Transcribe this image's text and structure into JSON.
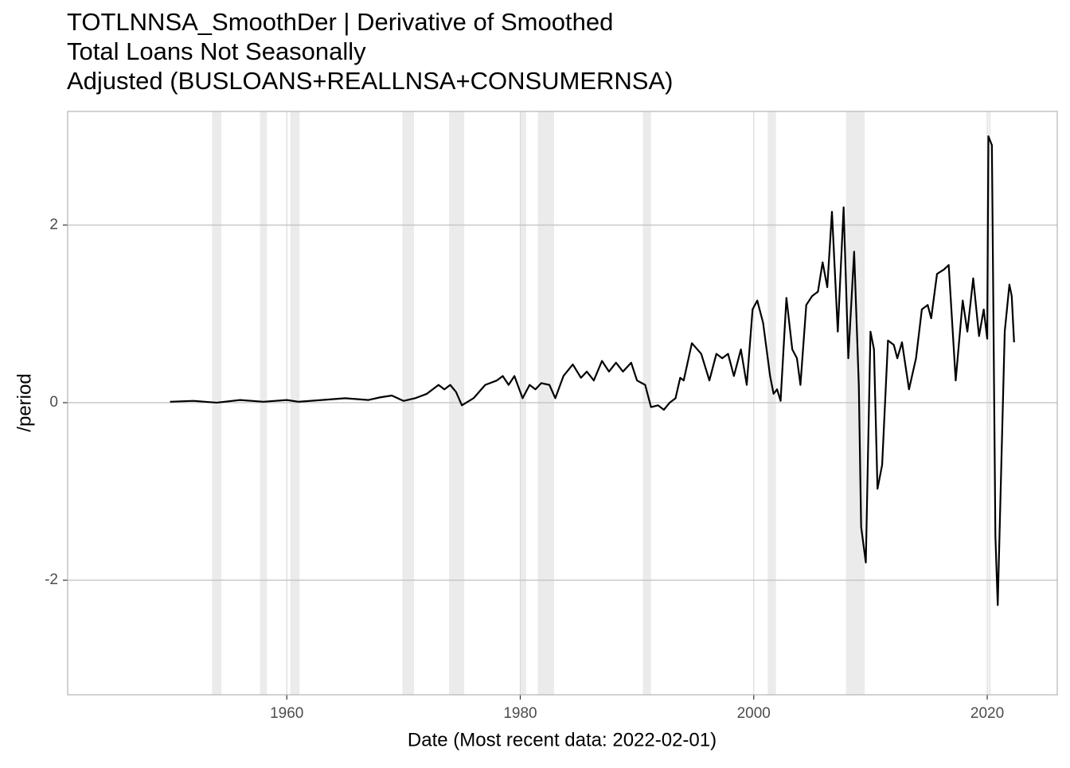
{
  "chart_data": {
    "type": "line",
    "title": [
      "TOTLNNSA_SmoothDer | Derivative of Smoothed",
      "Total Loans Not Seasonally",
      "Adjusted (BUSLOANS+REALLNSA+CONSUMERNSA)"
    ],
    "xlabel": "Date (Most recent data: 2022-02-01)",
    "ylabel": "/period",
    "xlim": [
      1941.23,
      2026.0
    ],
    "ylim": [
      -3.29,
      3.28
    ],
    "xticks": [
      1960,
      1980,
      2000,
      2020
    ],
    "yticks": [
      -2,
      0,
      2
    ],
    "grid": true,
    "recessions": [
      [
        1953.6,
        1954.4
      ],
      [
        1957.7,
        1958.3
      ],
      [
        1960.3,
        1961.1
      ],
      [
        1969.9,
        1970.9
      ],
      [
        1973.9,
        1975.2
      ],
      [
        1980.0,
        1980.5
      ],
      [
        1981.5,
        1982.9
      ],
      [
        1990.5,
        1991.2
      ],
      [
        2001.2,
        2001.9
      ],
      [
        2007.9,
        2009.5
      ],
      [
        2020.1,
        2020.3
      ]
    ],
    "series": [
      {
        "name": "TOTLNNSA_SmoothDer",
        "color": "#000000",
        "x": [
          1950,
          1952,
          1954,
          1956,
          1958,
          1960,
          1961,
          1963,
          1965,
          1967,
          1968,
          1969,
          1970,
          1971,
          1972,
          1973,
          1973.5,
          1974,
          1974.5,
          1975,
          1976,
          1977,
          1978,
          1978.5,
          1979,
          1979.5,
          1980.2,
          1980.8,
          1981.3,
          1981.8,
          1982.5,
          1983,
          1983.7,
          1984.5,
          1985.2,
          1985.7,
          1986.3,
          1987,
          1987.6,
          1988.2,
          1988.8,
          1989.5,
          1990,
          1990.7,
          1991.2,
          1991.8,
          1992.3,
          1992.8,
          1993.3,
          1993.7,
          1994,
          1994.7,
          1995.5,
          1996.2,
          1996.8,
          1997.3,
          1997.8,
          1998.3,
          1998.9,
          1999.4,
          1999.9,
          2000.3,
          2000.8,
          2001.4,
          2001.7,
          2002,
          2002.3,
          2002.8,
          2003.3,
          2003.7,
          2004,
          2004.5,
          2005,
          2005.5,
          2005.9,
          2006.3,
          2006.7,
          2007.2,
          2007.7,
          2008.1,
          2008.6,
          2009,
          2009.2,
          2009.6,
          2010,
          2010.3,
          2010.6,
          2011,
          2011.5,
          2012,
          2012.3,
          2012.7,
          2013.3,
          2013.9,
          2014.4,
          2014.9,
          2015.2,
          2015.7,
          2016.3,
          2016.7,
          2017.3,
          2017.9,
          2018.3,
          2018.8,
          2019.3,
          2019.7,
          2020,
          2020.1,
          2020.4,
          2020.7,
          2020.9,
          2021.5,
          2021.9,
          2022.1,
          2022.3
        ],
        "values": [
          0.01,
          0.02,
          0.0,
          0.03,
          0.01,
          0.03,
          0.01,
          0.03,
          0.05,
          0.03,
          0.06,
          0.08,
          0.02,
          0.05,
          0.1,
          0.2,
          0.15,
          0.2,
          0.12,
          -0.03,
          0.05,
          0.2,
          0.25,
          0.3,
          0.2,
          0.3,
          0.05,
          0.2,
          0.15,
          0.22,
          0.2,
          0.05,
          0.3,
          0.43,
          0.28,
          0.35,
          0.25,
          0.47,
          0.35,
          0.45,
          0.35,
          0.45,
          0.25,
          0.2,
          -0.05,
          -0.03,
          -0.08,
          0.0,
          0.05,
          0.28,
          0.25,
          0.67,
          0.55,
          0.25,
          0.55,
          0.5,
          0.55,
          0.3,
          0.6,
          0.2,
          1.05,
          1.15,
          0.9,
          0.3,
          0.1,
          0.15,
          0.02,
          1.18,
          0.6,
          0.5,
          0.2,
          1.1,
          1.2,
          1.25,
          1.58,
          1.3,
          2.15,
          0.8,
          2.2,
          0.5,
          1.7,
          0.2,
          -1.4,
          -1.8,
          0.8,
          0.6,
          -0.97,
          -0.7,
          0.7,
          0.65,
          0.5,
          0.68,
          0.15,
          0.5,
          1.05,
          1.1,
          0.95,
          1.45,
          1.5,
          1.55,
          0.25,
          1.15,
          0.8,
          1.4,
          0.75,
          1.05,
          0.72,
          3.0,
          2.9,
          -1.5,
          -2.28,
          0.8,
          1.33,
          1.2,
          0.68
        ]
      }
    ]
  }
}
